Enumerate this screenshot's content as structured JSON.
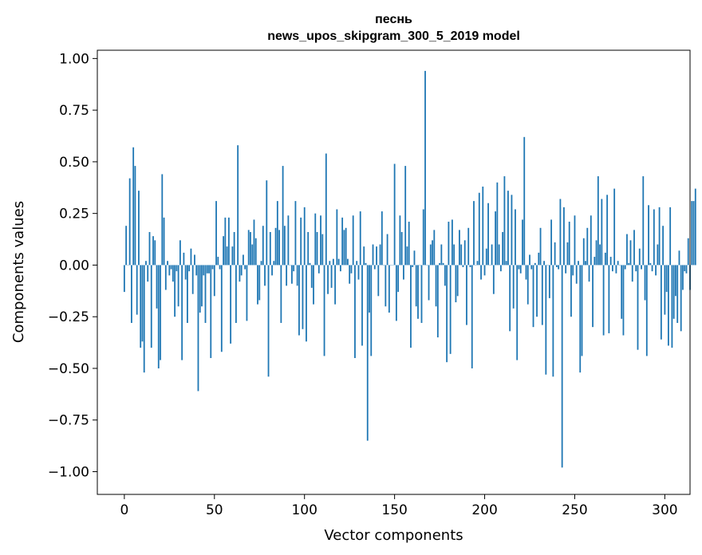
{
  "chart_data": {
    "type": "bar",
    "title": "песнь",
    "subtitle": "news_upos_skipgram_300_5_2019 model",
    "xlabel": "Vector components",
    "ylabel": "Components values",
    "xlim": [
      -15,
      314
    ],
    "ylim": [
      -1.11,
      1.04
    ],
    "xticks": [
      0,
      50,
      100,
      150,
      200,
      250,
      300
    ],
    "yticks": [
      1.0,
      0.75,
      0.5,
      0.25,
      0.0,
      -0.25,
      -0.5,
      -0.75,
      -1.0
    ],
    "xtick_labels": [
      "0",
      "50",
      "100",
      "150",
      "200",
      "250",
      "300"
    ],
    "ytick_labels": [
      "1.00",
      "0.75",
      "0.50",
      "0.25",
      "0.00",
      "−0.25",
      "−0.50",
      "−0.75",
      "−1.00"
    ],
    "bar_color": "#1f77b4",
    "values": [
      -0.13,
      0.19,
      0.0,
      0.42,
      -0.28,
      0.57,
      0.48,
      -0.24,
      0.36,
      -0.4,
      -0.37,
      -0.52,
      0.02,
      -0.08,
      0.16,
      -0.4,
      0.14,
      0.12,
      -0.21,
      -0.5,
      -0.46,
      0.44,
      0.23,
      -0.12,
      0.02,
      -0.05,
      -0.02,
      -0.08,
      -0.25,
      -0.03,
      -0.2,
      0.12,
      -0.46,
      0.06,
      -0.07,
      -0.28,
      -0.03,
      0.08,
      -0.14,
      0.05,
      -0.05,
      -0.61,
      -0.23,
      -0.2,
      -0.05,
      -0.28,
      -0.04,
      -0.04,
      -0.45,
      -0.02,
      -0.15,
      0.31,
      0.04,
      -0.02,
      -0.42,
      0.14,
      0.23,
      0.09,
      0.23,
      -0.38,
      0.09,
      0.16,
      -0.28,
      0.58,
      -0.08,
      -0.05,
      0.05,
      -0.02,
      -0.27,
      0.17,
      0.16,
      0.1,
      0.22,
      0.13,
      -0.19,
      -0.17,
      0.02,
      0.19,
      -0.1,
      0.41,
      -0.54,
      0.16,
      -0.05,
      0.02,
      0.18,
      0.31,
      0.17,
      -0.28,
      0.48,
      0.19,
      -0.1,
      0.24,
      0.0,
      -0.09,
      -0.03,
      0.31,
      -0.1,
      -0.34,
      0.23,
      -0.31,
      0.28,
      -0.37,
      0.16,
      0.01,
      -0.11,
      -0.19,
      0.25,
      0.16,
      -0.04,
      0.24,
      0.15,
      -0.44,
      0.54,
      -0.14,
      0.02,
      -0.11,
      0.03,
      -0.19,
      0.27,
      0.03,
      -0.03,
      0.23,
      0.17,
      0.18,
      0.03,
      -0.09,
      -0.04,
      0.24,
      -0.45,
      0.02,
      -0.07,
      0.26,
      -0.39,
      0.09,
      0.01,
      -0.85,
      -0.23,
      -0.44,
      0.1,
      -0.02,
      0.09,
      -0.15,
      0.1,
      0.26,
      0.0,
      -0.2,
      0.15,
      -0.23,
      0.0,
      0.0,
      0.49,
      -0.27,
      -0.13,
      0.24,
      0.16,
      -0.07,
      0.48,
      0.09,
      0.21,
      -0.4,
      -0.01,
      0.07,
      -0.2,
      -0.26,
      0.0,
      -0.28,
      0.27,
      0.94,
      0.0,
      -0.17,
      0.1,
      0.12,
      0.17,
      -0.2,
      -0.35,
      0.01,
      0.1,
      0.01,
      -0.1,
      -0.47,
      0.21,
      -0.43,
      0.22,
      0.1,
      -0.18,
      -0.15,
      0.17,
      0.1,
      -0.01,
      0.12,
      -0.29,
      0.18,
      -0.01,
      -0.5,
      0.31,
      0.0,
      0.02,
      0.35,
      -0.07,
      0.38,
      -0.05,
      0.08,
      0.3,
      0.0,
      0.1,
      -0.14,
      0.26,
      0.4,
      0.1,
      -0.03,
      0.16,
      0.43,
      0.02,
      0.36,
      -0.32,
      0.34,
      -0.21,
      0.27,
      -0.46,
      -0.02,
      -0.04,
      0.22,
      0.62,
      -0.07,
      -0.19,
      0.05,
      -0.02,
      -0.3,
      0.01,
      -0.25,
      0.06,
      0.18,
      -0.29,
      0.02,
      -0.53,
      0.0,
      -0.16,
      0.22,
      -0.54,
      0.11,
      -0.01,
      -0.02,
      0.32,
      -0.98,
      0.28,
      -0.04,
      0.11,
      0.21,
      -0.25,
      -0.05,
      0.24,
      -0.09,
      0.02,
      -0.52,
      -0.44,
      0.13,
      0.02,
      0.18,
      -0.08,
      0.24,
      -0.3,
      0.04,
      0.12,
      0.43,
      0.1,
      0.32,
      -0.34,
      0.06,
      0.34,
      -0.33,
      0.04,
      -0.03,
      0.37,
      -0.04,
      0.02,
      0.0,
      -0.26,
      -0.34,
      -0.02,
      0.15,
      0.01,
      0.12,
      -0.08,
      0.17,
      -0.03,
      -0.41,
      0.08,
      -0.02,
      0.43,
      -0.17,
      -0.44,
      0.29,
      0.01,
      -0.03,
      0.27,
      -0.05,
      0.1,
      0.28,
      -0.36,
      0.19,
      -0.24,
      -0.13,
      -0.39,
      0.28,
      -0.4,
      -0.26,
      -0.15,
      -0.28,
      0.07,
      -0.32,
      -0.12,
      -0.03,
      -0.04,
      0.13,
      -0.12,
      0.31,
      0.31,
      0.37
    ]
  }
}
